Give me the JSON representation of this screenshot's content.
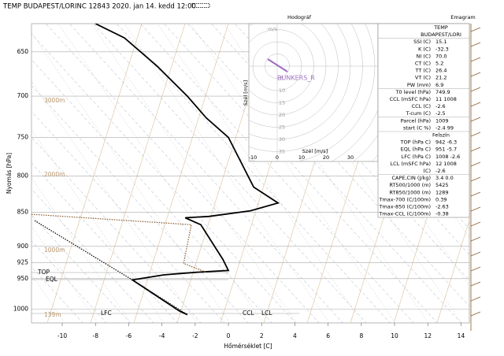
{
  "chart_data": {
    "type": "line",
    "title": "TEMP BUDAPEST/LORINC 12843 2020. jan 14. kedd 12:00",
    "xlabel": "Hőmérséklet [C]",
    "ylabel": "Nyomás [hPa]",
    "xlim": [
      -11.85,
      14.5
    ],
    "xticks": [
      -10,
      -8,
      -6,
      -4,
      -2,
      0,
      2,
      4,
      6,
      8,
      10,
      12,
      14
    ],
    "ylim": [
      620,
      1023
    ],
    "ylog": true,
    "yinverted": true,
    "yticks": [
      650,
      700,
      750,
      800,
      850,
      900,
      925,
      950,
      1000
    ],
    "grid": true,
    "series": [
      {
        "color": "#000000",
        "style": "solid",
        "x": [
          -8,
          -6.26,
          -4.27,
          -2.47,
          -1.33,
          0,
          1.52,
          2.99,
          1.33,
          -1.18,
          -2.6,
          -1.66,
          -0.33,
          0,
          -2,
          -3.89,
          -5.78,
          -2.94,
          -2.47
        ],
        "values": [
          620,
          635,
          666,
          700,
          726,
          750,
          815,
          837,
          848,
          856,
          858,
          868,
          920,
          937,
          940,
          944,
          952,
          1003,
          1009
        ]
      },
      {
        "color": "#000000",
        "style": "dotted",
        "x": [
          -11.66,
          -5.78,
          -2.47
        ],
        "values": [
          862,
          952,
          1009
        ]
      },
      {
        "color": "#8b5a2b",
        "style": "dotted",
        "x": [
          -11.85,
          -2.23,
          -2.7,
          -1.33
        ],
        "values": [
          853,
          868,
          926,
          940
        ]
      }
    ],
    "heights": [
      "3000m",
      "2000m",
      "1000m",
      "139m"
    ],
    "levels": [
      "TOP",
      "EQL",
      "LFC",
      "CCL",
      "LCL"
    ],
    "hodograph": {
      "title": "Hodográf",
      "unit": "m/s",
      "axis_label": "Szél [m/s]",
      "marker": "BUNKERS_R",
      "xticks": [
        -10,
        0,
        10,
        20,
        30
      ],
      "yticks": [
        35,
        30,
        25,
        20,
        15,
        10,
        5
      ]
    },
    "emagram_title": "Emagram",
    "table": {
      "header": [
        "TEMP",
        "BUDAPEST/LORI"
      ],
      "groups": [
        [
          [
            "SSI (C)",
            "15.1"
          ],
          [
            "K (C)",
            "-32.3"
          ],
          [
            "NI (C)",
            "70.0"
          ],
          [
            "CT (C)",
            "5.2"
          ],
          [
            "TT (C)",
            "26.4"
          ],
          [
            "VT (C)",
            "21.2"
          ],
          [
            "PW (mm)",
            "6.9"
          ]
        ],
        [
          [
            "T0 level (hPa)",
            "749.9"
          ],
          [
            "CCL (mSFC hPa)",
            "11  1008"
          ],
          [
            "CCL (C)",
            "-2.6"
          ],
          [
            "T-cum (C)",
            "-2.5"
          ]
        ],
        [
          [
            "Parcel (hPa)",
            "1009"
          ],
          [
            "start (C  %)",
            "-2.4  99"
          ]
        ],
        [
          [
            "Felszín",
            ""
          ],
          [
            "TOP (hPa  C)",
            "942  -6.3"
          ],
          [
            "EQL (hPa  C)",
            "951  -5.7"
          ],
          [
            "LFC (hPa  C)",
            "1008  -2.6"
          ],
          [
            "LCL (mSFC hPa)",
            "12  1008"
          ],
          [
            "(C)",
            "-2.6"
          ]
        ],
        [
          [
            "CAPE,CIN (J/kg)",
            "3.4  0.0"
          ],
          [
            "RT500/1000 (m)",
            "5425"
          ],
          [
            "RT850/1000 (m)",
            "1289"
          ],
          [
            "Tmax-700 (C/100m)",
            "0.39"
          ],
          [
            "Tmax-850 (C/100m)",
            "-2.63"
          ],
          [
            "Tmax-CCL (C/100m)",
            "-0.38"
          ]
        ]
      ]
    }
  }
}
